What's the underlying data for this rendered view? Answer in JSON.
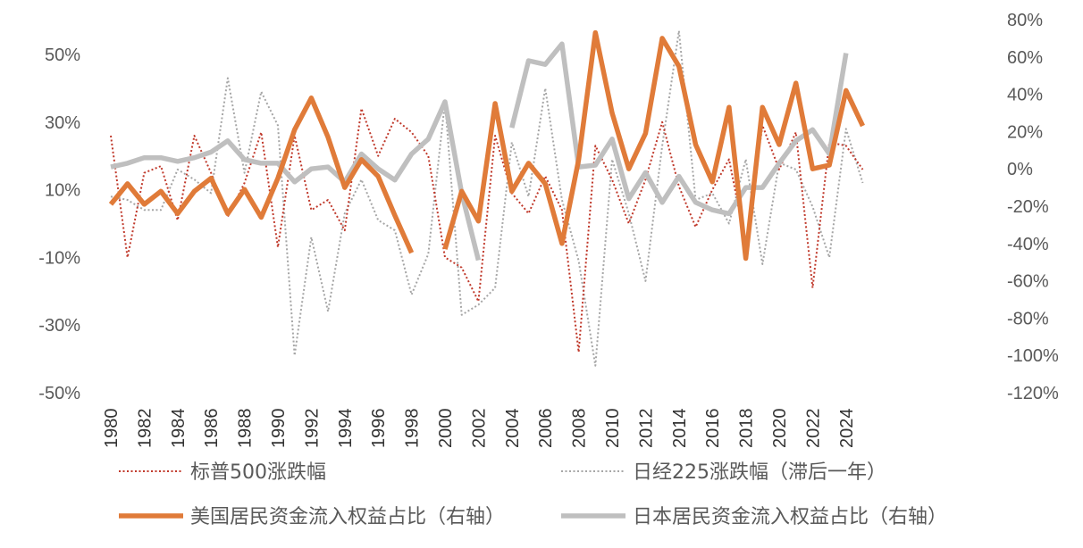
{
  "chart_data": {
    "type": "line",
    "title": "",
    "years": [
      1980,
      1981,
      1982,
      1983,
      1984,
      1985,
      1986,
      1987,
      1988,
      1989,
      1990,
      1991,
      1992,
      1993,
      1994,
      1995,
      1996,
      1997,
      1998,
      1999,
      2000,
      2001,
      2002,
      2003,
      2004,
      2005,
      2006,
      2007,
      2008,
      2009,
      2010,
      2011,
      2012,
      2013,
      2014,
      2015,
      2016,
      2017,
      2018,
      2019,
      2020,
      2021,
      2022,
      2023,
      2024,
      2025
    ],
    "x_tick_labels": [
      "1980",
      "1982",
      "1984",
      "1986",
      "1988",
      "1990",
      "1992",
      "1994",
      "1996",
      "1998",
      "2000",
      "2002",
      "2004",
      "2006",
      "2008",
      "2010",
      "2012",
      "2014",
      "2016",
      "2018",
      "2020",
      "2022",
      "2024"
    ],
    "left_axis": {
      "min": -50,
      "max": 60,
      "ticks": [
        50,
        30,
        10,
        -10,
        -30,
        -50
      ],
      "tick_labels": [
        "50%",
        "30%",
        "10%",
        "-10%",
        "-30%",
        "-50%"
      ]
    },
    "right_axis": {
      "min": -120,
      "max": 80,
      "ticks": [
        80,
        60,
        40,
        20,
        0,
        -20,
        -40,
        -60,
        -80,
        -100,
        -120
      ],
      "tick_labels": [
        "80%",
        "60%",
        "40%",
        "20%",
        "0%",
        "-20%",
        "-40%",
        "-60%",
        "-80%",
        "-100%",
        "-120%"
      ]
    },
    "series": [
      {
        "name": "标普500涨跌幅",
        "axis": "left",
        "style": "dotted",
        "color": "#C0392B",
        "values": [
          26,
          -10,
          15,
          17,
          1,
          26,
          15,
          2,
          12,
          27,
          -7,
          26,
          4,
          7,
          -2,
          34,
          20,
          31,
          27,
          20,
          -10,
          -13,
          -23,
          26,
          9,
          3,
          14,
          4,
          -38,
          23,
          13,
          0,
          13,
          30,
          11,
          -1,
          10,
          19,
          -6,
          29,
          16,
          27,
          -19,
          24,
          23,
          16
        ]
      },
      {
        "name": "日经225涨跌幅（滞后一年）",
        "axis": "left",
        "style": "dotted",
        "color": "#A6A6A6",
        "values": [
          8,
          7,
          4,
          4,
          16,
          13,
          9,
          43,
          15,
          39,
          29,
          -39,
          -4,
          -26,
          3,
          13,
          1,
          -2,
          -21,
          -9,
          36,
          -27,
          -24,
          -19,
          24,
          8,
          40,
          7,
          -11,
          -42,
          19,
          3,
          -17,
          23,
          57,
          7,
          9,
          0,
          19,
          -12,
          18,
          16,
          5,
          -10,
          28,
          12
        ]
      },
      {
        "name": "美国居民资金流入权益占比（右轴）",
        "axis": "right",
        "style": "solid",
        "color": "#E07B39",
        "values": [
          -19,
          -8,
          -19,
          -12,
          -24,
          -12,
          -5,
          -24,
          -11,
          -26,
          -5,
          21,
          38,
          17,
          -10,
          5,
          -4,
          -25,
          -45,
          null,
          -43,
          -12,
          -28,
          35,
          -12,
          3,
          -8,
          -40,
          5,
          73,
          30,
          0,
          19,
          70,
          55,
          13,
          -7,
          33,
          -48,
          33,
          13,
          46,
          0,
          2,
          42,
          23
        ]
      },
      {
        "name": "日本居民资金流入权益占比（右轴）",
        "axis": "right",
        "style": "solid",
        "color": "#BFBFBF",
        "values": [
          1,
          3,
          6,
          6,
          4,
          6,
          9,
          15,
          5,
          3,
          3,
          -7,
          0,
          1,
          -7,
          8,
          0,
          -6,
          8,
          16,
          36,
          -13,
          -49,
          null,
          22,
          58,
          56,
          67,
          1,
          2,
          16,
          -16,
          -2,
          -18,
          -4,
          -18,
          -22,
          -24,
          -10,
          -10,
          3,
          15,
          21,
          8,
          62,
          null
        ]
      }
    ],
    "legend_position": "bottom"
  }
}
